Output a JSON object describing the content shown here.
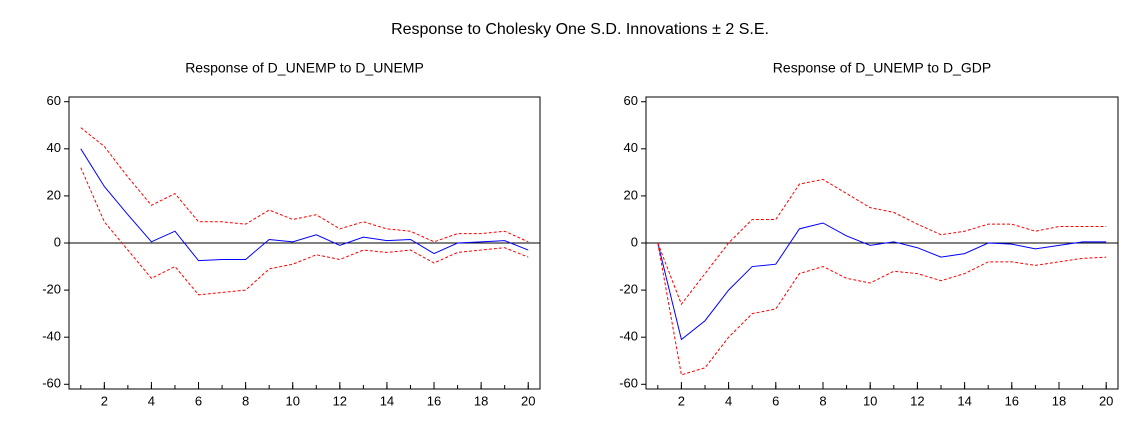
{
  "title": "Response to Cholesky One S.D. Innovations ± 2 S.E.",
  "chart_data": [
    {
      "type": "line",
      "title": "Response of D_UNEMP to D_UNEMP",
      "x": [
        1,
        2,
        3,
        4,
        5,
        6,
        7,
        8,
        9,
        10,
        11,
        12,
        13,
        14,
        15,
        16,
        17,
        18,
        19,
        20
      ],
      "series": [
        {
          "color": "#0000ff",
          "linestyle": "solid",
          "values": [
            40,
            24,
            12,
            0.5,
            5,
            -7.5,
            -7,
            -7,
            1.5,
            0.5,
            3.5,
            -1,
            2.5,
            1,
            1.5,
            -4.5,
            0,
            0.5,
            1,
            -3
          ]
        },
        {
          "color": "#ff0000",
          "linestyle": "dashed",
          "values": [
            49,
            41,
            28,
            16,
            21,
            9,
            9,
            8,
            14,
            10,
            12,
            6,
            9,
            6,
            5,
            0.5,
            4,
            4,
            5,
            0.5
          ]
        },
        {
          "color": "#ff0000",
          "linestyle": "dashed",
          "values": [
            32,
            9,
            -3,
            -15,
            -10,
            -22,
            -21,
            -20,
            -11,
            -9,
            -5,
            -7,
            -3,
            -4,
            -3,
            -8.5,
            -4,
            -3,
            -2,
            -6
          ]
        }
      ],
      "xlim": [
        0.5,
        20.5
      ],
      "xticks": [
        2,
        4,
        6,
        8,
        10,
        12,
        14,
        16,
        18,
        20
      ],
      "ylim": [
        -62,
        62
      ],
      "yticks": [
        -60,
        -40,
        -20,
        0,
        20,
        40,
        60
      ]
    },
    {
      "type": "line",
      "title": "Response of D_UNEMP to D_GDP",
      "x": [
        1,
        2,
        3,
        4,
        5,
        6,
        7,
        8,
        9,
        10,
        11,
        12,
        13,
        14,
        15,
        16,
        17,
        18,
        19,
        20
      ],
      "series": [
        {
          "color": "#0000ff",
          "linestyle": "solid",
          "values": [
            0,
            -41,
            -33,
            -20,
            -10,
            -9,
            6,
            8.5,
            3,
            -1,
            0.5,
            -2,
            -6,
            -4.5,
            0,
            -0.5,
            -2.5,
            -1,
            0.5,
            0.5
          ]
        },
        {
          "color": "#ff0000",
          "linestyle": "dashed",
          "values": [
            0,
            -26,
            -13,
            0,
            10,
            10,
            25,
            27,
            21,
            15,
            13,
            8,
            3.5,
            5,
            8,
            8,
            5,
            7,
            7,
            7
          ]
        },
        {
          "color": "#ff0000",
          "linestyle": "dashed",
          "values": [
            0,
            -56,
            -53,
            -40,
            -30,
            -28,
            -13,
            -10,
            -15,
            -17,
            -12,
            -13,
            -16,
            -13,
            -8,
            -8,
            -9.5,
            -8,
            -6.5,
            -6
          ]
        }
      ],
      "xlim": [
        0.5,
        20.5
      ],
      "xticks": [
        2,
        4,
        6,
        8,
        10,
        12,
        14,
        16,
        18,
        20
      ],
      "ylim": [
        -62,
        62
      ],
      "yticks": [
        -60,
        -40,
        -20,
        0,
        20,
        40,
        60
      ]
    }
  ]
}
